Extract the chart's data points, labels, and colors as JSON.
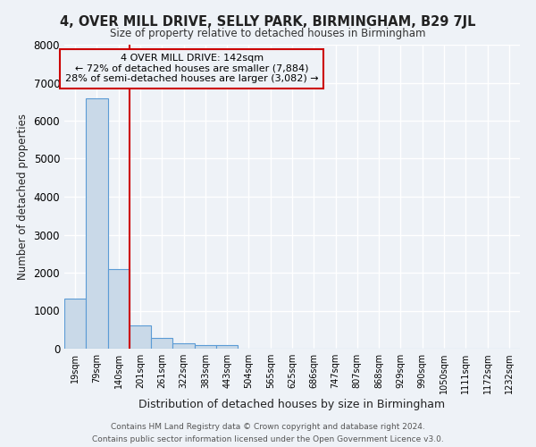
{
  "title": "4, OVER MILL DRIVE, SELLY PARK, BIRMINGHAM, B29 7JL",
  "subtitle": "Size of property relative to detached houses in Birmingham",
  "xlabel": "Distribution of detached houses by size in Birmingham",
  "ylabel": "Number of detached properties",
  "bar_color": "#c9d9e8",
  "bar_edge_color": "#5b9bd5",
  "categories": [
    "19sqm",
    "79sqm",
    "140sqm",
    "201sqm",
    "261sqm",
    "322sqm",
    "383sqm",
    "443sqm",
    "504sqm",
    "565sqm",
    "625sqm",
    "686sqm",
    "747sqm",
    "807sqm",
    "868sqm",
    "929sqm",
    "990sqm",
    "1050sqm",
    "1111sqm",
    "1172sqm",
    "1232sqm"
  ],
  "values": [
    1310,
    6580,
    2100,
    620,
    290,
    140,
    90,
    90,
    0,
    0,
    0,
    0,
    0,
    0,
    0,
    0,
    0,
    0,
    0,
    0,
    0
  ],
  "ylim": [
    0,
    8000
  ],
  "yticks": [
    0,
    1000,
    2000,
    3000,
    4000,
    5000,
    6000,
    7000,
    8000
  ],
  "vline_color": "#cc0000",
  "annotation_title": "4 OVER MILL DRIVE: 142sqm",
  "annotation_line1": "← 72% of detached houses are smaller (7,884)",
  "annotation_line2": "28% of semi-detached houses are larger (3,082) →",
  "annotation_box_edge_color": "#cc0000",
  "footer1": "Contains HM Land Registry data © Crown copyright and database right 2024.",
  "footer2": "Contains public sector information licensed under the Open Government Licence v3.0.",
  "background_color": "#eef2f7",
  "grid_color": "#ffffff"
}
